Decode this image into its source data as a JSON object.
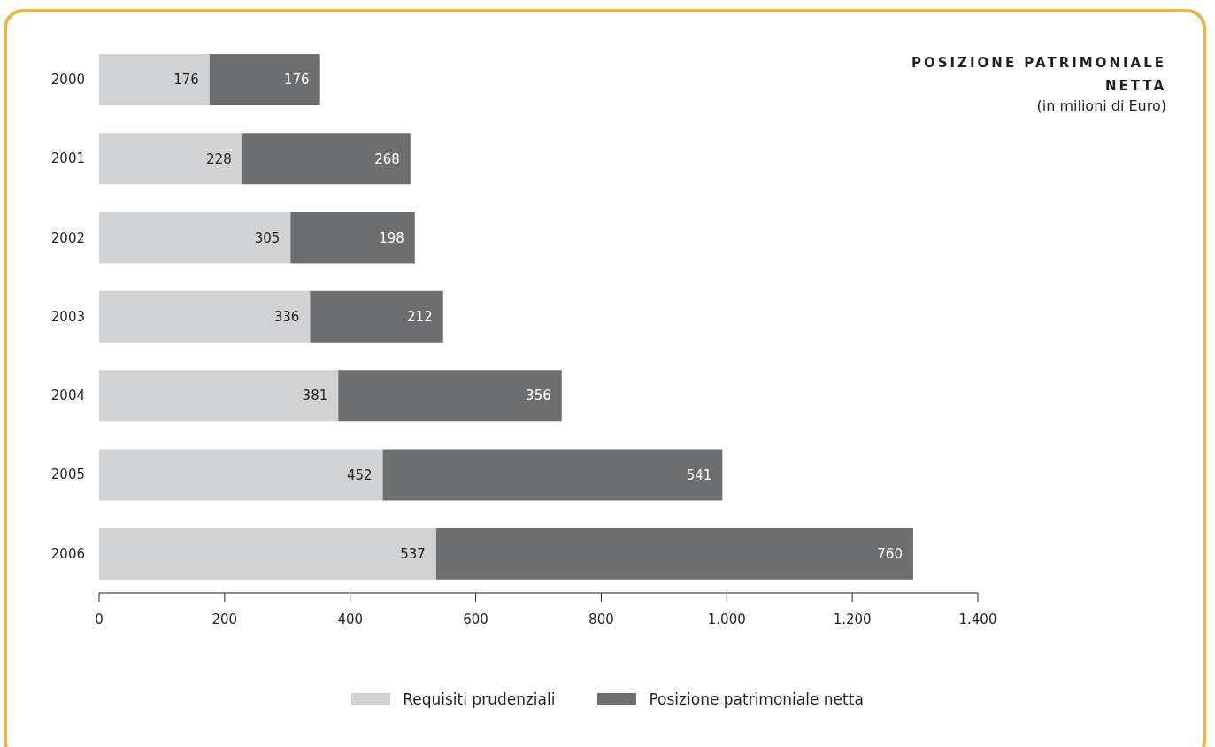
{
  "chart_data": {
    "type": "bar",
    "orientation": "horizontal",
    "stacked": true,
    "title": "POSIZIONE PATRIMONIALE NETTA",
    "subtitle": "(in milioni di Euro)",
    "categories": [
      "2000",
      "2001",
      "2002",
      "2003",
      "2004",
      "2005",
      "2006"
    ],
    "series": [
      {
        "name": "Requisiti prudenziali",
        "color": "#d1d2d4",
        "values": [
          176,
          228,
          305,
          336,
          381,
          452,
          537
        ]
      },
      {
        "name": "Posizione patrimoniale netta",
        "color": "#6d6e70",
        "values": [
          176,
          268,
          198,
          212,
          356,
          541,
          760
        ]
      }
    ],
    "xlim": [
      0,
      1400
    ],
    "xticks": [
      0,
      200,
      400,
      600,
      800,
      {
        "value": 1000,
        "label": "1.000"
      },
      {
        "value": 1200,
        "label": "1.200"
      },
      {
        "value": 1400,
        "label": "1.400"
      }
    ],
    "data_labels": true,
    "grid": false,
    "legend": "bottom"
  }
}
